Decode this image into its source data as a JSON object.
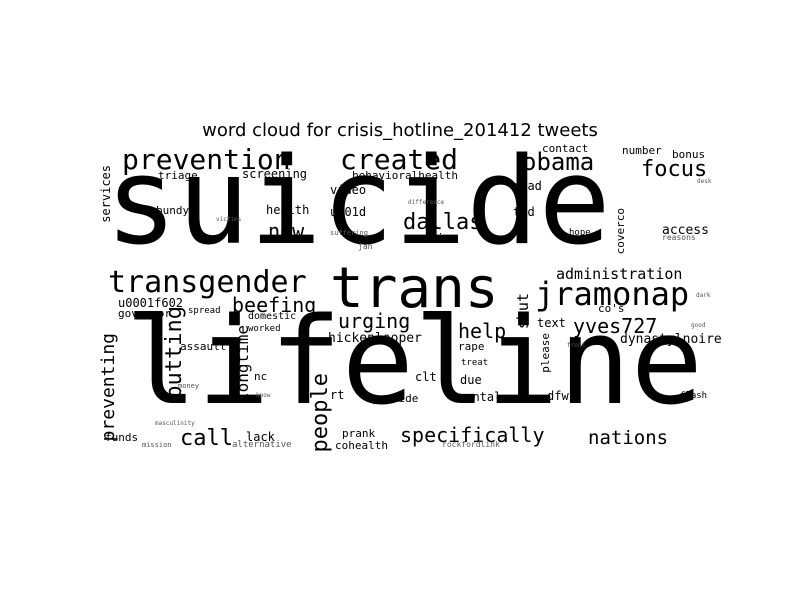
{
  "title": "word cloud for crisis_hotline_201412 tweets",
  "colors": {
    "background": "#ffffff",
    "text": "#000000"
  },
  "words": [
    "suicide",
    "lifeline",
    "trans",
    "transgender",
    "jramonap",
    "prevention",
    "created",
    "obama",
    "focus",
    "dallas",
    "new",
    "beefing",
    "urging",
    "help",
    "yves727",
    "specifically",
    "nations",
    "call",
    "people",
    "putting",
    "preventing",
    "longtime",
    "administration",
    "shut",
    "dynastylnoire",
    "hickenlooper",
    "screening",
    "behavioralhealth",
    "services",
    "triage",
    "contact",
    "number",
    "bonus",
    "video",
    "read",
    "u201d",
    "health",
    "bundy",
    "ted",
    "counties",
    "access",
    "reasons",
    "coverco",
    "hope",
    "co's",
    "text",
    "please",
    "u0001f602",
    "governor",
    "spread",
    "worked",
    "domestic",
    "assault",
    "rape",
    "treat",
    "nc",
    "clt",
    "due",
    "mental",
    "dfw",
    "provide",
    "rt",
    "prank",
    "cohealth",
    "lack",
    "funds",
    "mission",
    "alternative",
    "rockfordlink",
    "flash",
    "money",
    "know",
    "masculinity",
    "jan",
    "suffering",
    "victims",
    "difference",
    "desk",
    "dark",
    "good",
    "front"
  ]
}
